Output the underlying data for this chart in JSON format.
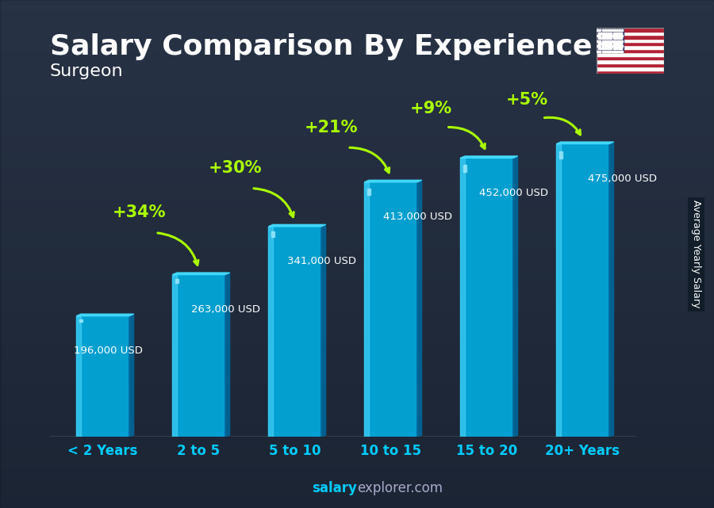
{
  "title": "Salary Comparison By Experience",
  "subtitle": "Surgeon",
  "categories": [
    "< 2 Years",
    "2 to 5",
    "5 to 10",
    "10 to 15",
    "15 to 20",
    "20+ Years"
  ],
  "values": [
    196000,
    263000,
    341000,
    413000,
    452000,
    475000
  ],
  "labels": [
    "196,000 USD",
    "263,000 USD",
    "341,000 USD",
    "413,000 USD",
    "452,000 USD",
    "475,000 USD"
  ],
  "pct_labels": [
    "+34%",
    "+30%",
    "+21%",
    "+9%",
    "+5%"
  ],
  "bar_color_front": "#00aadd",
  "bar_color_left": "#33ccff",
  "bar_color_right": "#007799",
  "bar_color_top": "#44ddff",
  "ylabel": "Average Yearly Salary",
  "footer_bold": "salary",
  "footer_normal": "explorer.com",
  "footer_color_bold": "#00ccff",
  "footer_color_normal": "#aaaacc",
  "bg_color_top": "#2a3a4a",
  "bg_color_bottom": "#1a2530",
  "title_color": "#ffffff",
  "subtitle_color": "#ffffff",
  "label_color": "#ffffff",
  "xticklabel_color": "#00ccff",
  "pct_color": "#aaff00",
  "arrow_color": "#aaff00",
  "ylim": [
    0,
    560000
  ],
  "title_fontsize": 26,
  "subtitle_fontsize": 16,
  "bar_width": 0.55,
  "bar_depth": 0.08,
  "ylabel_color": "#ffffff",
  "ylabel_fontsize": 9
}
